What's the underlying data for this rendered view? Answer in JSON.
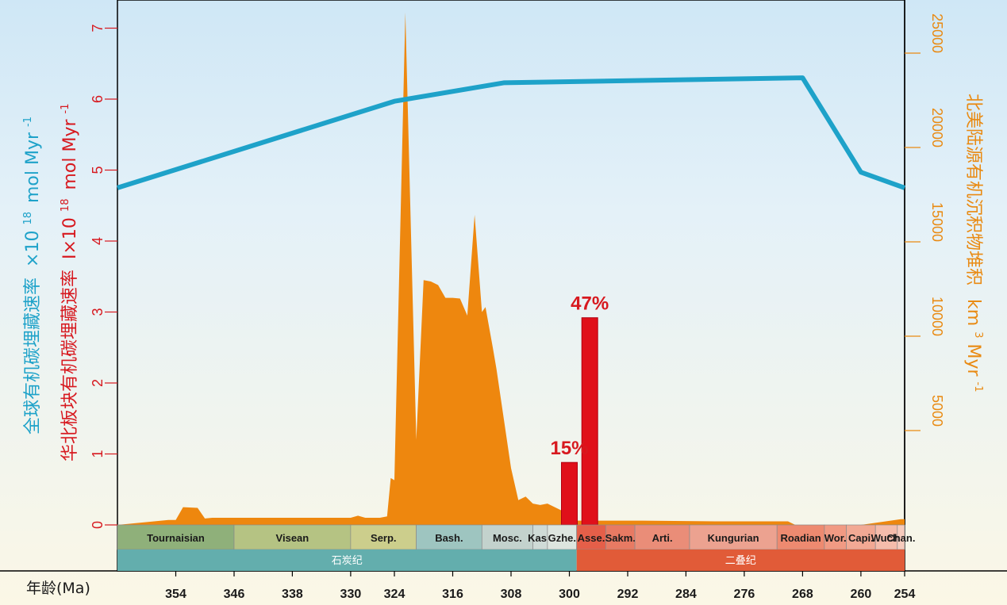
{
  "chart_data": {
    "type": "area",
    "xlabel": "年龄(Ma)",
    "x_ticks": [
      354,
      346,
      338,
      330,
      324,
      316,
      308,
      300,
      292,
      284,
      276,
      268,
      260,
      254
    ],
    "xlim": [
      362,
      254
    ],
    "axes": {
      "left": {
        "label_global_main": "全球有机碳埋藏速率",
        "label_global_unit_prefix": "×10",
        "label_global_unit_exp": "18",
        "label_global_unit_suffix": "mol Myr",
        "label_global_unit_exp2": "-1",
        "label_ncb_main": "华北板块有机碳埋藏速率",
        "label_ncb_unit_prefix": "I×10",
        "label_ncb_unit_exp": "18",
        "label_ncb_unit_suffix": "mol Myr",
        "label_ncb_unit_exp2": "-1",
        "ticks": [
          0,
          1,
          2,
          3,
          4,
          5,
          6,
          7
        ],
        "ylim": [
          0,
          7.3
        ]
      },
      "right": {
        "label_main": "北美陆源有机沉积物堆积",
        "label_unit": "km",
        "label_unit_exp": "3",
        "label_unit_suffix": "Myr",
        "label_unit_exp2": "-1",
        "ticks": [
          5000,
          10000,
          15000,
          20000,
          25000
        ],
        "ylim": [
          0,
          25000
        ]
      }
    },
    "series": [
      {
        "name": "",
        "type": "line",
        "axis": "left",
        "color": "#1ea2c9",
        "x": [
          362,
          324,
          309,
          268,
          260,
          254
        ],
        "y": [
          4.75,
          5.97,
          6.23,
          6.3,
          4.97,
          4.75
        ]
      },
      {
        "name": "",
        "type": "area",
        "axis": "left",
        "color": "#ee870e",
        "x": [
          362,
          355,
          354,
          353,
          351,
          350,
          349,
          340,
          330,
          329,
          328,
          326,
          325,
          324.5,
          324,
          322.5,
          321,
          320,
          319,
          318,
          317,
          316,
          315,
          314,
          313,
          312,
          311.5,
          310.5,
          310,
          309,
          308,
          307,
          306,
          305,
          304,
          303,
          301,
          300,
          299.5,
          299,
          298,
          297,
          290,
          280,
          270,
          269,
          260,
          254.5,
          254
        ],
        "y": [
          0,
          0.07,
          0.07,
          0.25,
          0.24,
          0.09,
          0.1,
          0.1,
          0.1,
          0.13,
          0.1,
          0.1,
          0.12,
          0.66,
          0.63,
          7.22,
          1.2,
          3.45,
          3.43,
          3.38,
          3.2,
          3.2,
          3.19,
          2.95,
          4.37,
          3.0,
          3.07,
          2.5,
          2.2,
          1.5,
          0.8,
          0.35,
          0.4,
          0.3,
          0.28,
          0.3,
          0.2,
          0.15,
          0.06,
          0.06,
          0.06,
          0.06,
          0.06,
          0.05,
          0.05,
          0,
          0,
          0.08,
          0.08
        ]
      },
      {
        "name": "",
        "type": "bar",
        "axis": "left",
        "color": "#e0101a",
        "x": [
          300,
          297.2
        ],
        "y": [
          0.88,
          2.92
        ],
        "labels": [
          "15%",
          "47%"
        ]
      }
    ],
    "stages": [
      {
        "name": "Tournaisian",
        "start": 362,
        "end": 346,
        "color": "#8fb07a"
      },
      {
        "name": "Visean",
        "start": 346,
        "end": 330,
        "color": "#b5c383"
      },
      {
        "name": "Serp.",
        "start": 330,
        "end": 321,
        "color": "#ccce8c"
      },
      {
        "name": "Bash.",
        "start": 321,
        "end": 312,
        "color": "#9ec5c0"
      },
      {
        "name": "Mosc.",
        "start": 312,
        "end": 305,
        "color": "#c3d2cd"
      },
      {
        "name": "Kasi.",
        "start": 305,
        "end": 303,
        "color": "#cfdbd7"
      },
      {
        "name": "Gzhe.",
        "start": 303,
        "end": 299,
        "color": "#dde5df"
      },
      {
        "name": "Asse.",
        "start": 299,
        "end": 295,
        "color": "#e55f49"
      },
      {
        "name": "Sakm.",
        "start": 295,
        "end": 291,
        "color": "#e87a63"
      },
      {
        "name": "Arti.",
        "start": 291,
        "end": 283.5,
        "color": "#ea8d78"
      },
      {
        "name": "Kungurian",
        "start": 283.5,
        "end": 271.5,
        "color": "#eca290"
      },
      {
        "name": "Roadian",
        "start": 271.5,
        "end": 265,
        "color": "#ee8a70"
      },
      {
        "name": "Wor.",
        "start": 265,
        "end": 262,
        "color": "#f19a83"
      },
      {
        "name": "Capi.",
        "start": 262,
        "end": 258,
        "color": "#f2a994"
      },
      {
        "name": "Wuch.",
        "start": 258,
        "end": 255,
        "color": "#f5bcab"
      },
      {
        "name": "Chan.",
        "start": 255,
        "end": 254,
        "color": "#f7cbbd"
      }
    ],
    "periods": [
      {
        "name": "石炭纪",
        "start": 362,
        "end": 299,
        "color": "#63aead"
      },
      {
        "name": "二叠纪",
        "start": 299,
        "end": 254,
        "color": "#e15b38"
      }
    ]
  }
}
